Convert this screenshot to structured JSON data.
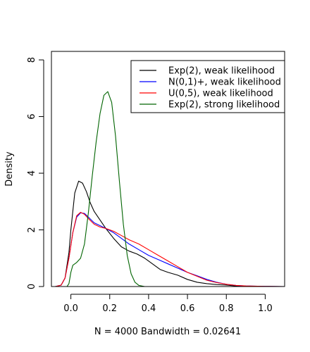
{
  "chart_data": {
    "type": "line",
    "title": "",
    "xlabel": "N = 4000   Bandwidth = 0.02641",
    "ylabel": "Density",
    "xlim": [
      -0.1,
      1.1
    ],
    "ylim": [
      0,
      8.3
    ],
    "xticks": [
      0.0,
      0.2,
      0.4,
      0.6,
      0.8,
      1.0
    ],
    "xtick_labels": [
      "0.0",
      "0.2",
      "0.4",
      "0.6",
      "0.8",
      "1.0"
    ],
    "yticks": [
      0,
      2,
      4,
      6,
      8
    ],
    "ytick_labels": [
      "0",
      "2",
      "4",
      "6",
      "8"
    ],
    "grid": false,
    "legend_position": "top-right",
    "series": [
      {
        "name": "Exp(2), weak likelihood",
        "color": "#000000",
        "points": [
          [
            -0.08,
            0
          ],
          [
            -0.05,
            0.05
          ],
          [
            -0.03,
            0.3
          ],
          [
            -0.01,
            1.2
          ],
          [
            0.0,
            2.0
          ],
          [
            0.02,
            3.3
          ],
          [
            0.04,
            3.72
          ],
          [
            0.06,
            3.65
          ],
          [
            0.08,
            3.35
          ],
          [
            0.1,
            2.95
          ],
          [
            0.12,
            2.65
          ],
          [
            0.15,
            2.35
          ],
          [
            0.18,
            2.05
          ],
          [
            0.22,
            1.7
          ],
          [
            0.26,
            1.4
          ],
          [
            0.3,
            1.25
          ],
          [
            0.34,
            1.15
          ],
          [
            0.38,
            1.0
          ],
          [
            0.42,
            0.8
          ],
          [
            0.46,
            0.6
          ],
          [
            0.5,
            0.5
          ],
          [
            0.55,
            0.4
          ],
          [
            0.6,
            0.25
          ],
          [
            0.65,
            0.15
          ],
          [
            0.7,
            0.1
          ],
          [
            0.75,
            0.07
          ],
          [
            0.8,
            0.05
          ],
          [
            0.85,
            0.02
          ],
          [
            0.9,
            0.01
          ],
          [
            1.0,
            0.005
          ],
          [
            1.1,
            0
          ]
        ]
      },
      {
        "name": "N(0,1)+, weak likelihood",
        "color": "#0000ff",
        "points": [
          [
            -0.08,
            0
          ],
          [
            -0.05,
            0.05
          ],
          [
            -0.03,
            0.3
          ],
          [
            -0.01,
            1.0
          ],
          [
            0.01,
            1.9
          ],
          [
            0.03,
            2.45
          ],
          [
            0.05,
            2.6
          ],
          [
            0.07,
            2.58
          ],
          [
            0.09,
            2.45
          ],
          [
            0.12,
            2.25
          ],
          [
            0.15,
            2.15
          ],
          [
            0.18,
            2.05
          ],
          [
            0.22,
            1.9
          ],
          [
            0.26,
            1.7
          ],
          [
            0.3,
            1.5
          ],
          [
            0.35,
            1.3
          ],
          [
            0.4,
            1.1
          ],
          [
            0.45,
            0.95
          ],
          [
            0.5,
            0.8
          ],
          [
            0.55,
            0.65
          ],
          [
            0.6,
            0.5
          ],
          [
            0.65,
            0.38
          ],
          [
            0.7,
            0.25
          ],
          [
            0.75,
            0.15
          ],
          [
            0.8,
            0.08
          ],
          [
            0.85,
            0.04
          ],
          [
            0.9,
            0.02
          ],
          [
            1.0,
            0.005
          ],
          [
            1.1,
            0
          ]
        ]
      },
      {
        "name": "U(0,5), weak likelihood",
        "color": "#ff0000",
        "points": [
          [
            -0.08,
            0
          ],
          [
            -0.05,
            0.05
          ],
          [
            -0.03,
            0.3
          ],
          [
            -0.01,
            1.0
          ],
          [
            0.01,
            1.9
          ],
          [
            0.03,
            2.5
          ],
          [
            0.05,
            2.62
          ],
          [
            0.07,
            2.55
          ],
          [
            0.09,
            2.4
          ],
          [
            0.12,
            2.2
          ],
          [
            0.15,
            2.1
          ],
          [
            0.18,
            2.05
          ],
          [
            0.22,
            1.95
          ],
          [
            0.26,
            1.8
          ],
          [
            0.3,
            1.65
          ],
          [
            0.35,
            1.5
          ],
          [
            0.4,
            1.3
          ],
          [
            0.45,
            1.1
          ],
          [
            0.5,
            0.9
          ],
          [
            0.55,
            0.7
          ],
          [
            0.6,
            0.5
          ],
          [
            0.65,
            0.36
          ],
          [
            0.7,
            0.22
          ],
          [
            0.75,
            0.14
          ],
          [
            0.8,
            0.08
          ],
          [
            0.85,
            0.04
          ],
          [
            0.9,
            0.02
          ],
          [
            1.0,
            0.005
          ],
          [
            1.1,
            0
          ]
        ]
      },
      {
        "name": "Exp(2), strong likelihood",
        "color": "#006400",
        "points": [
          [
            -0.02,
            0
          ],
          [
            -0.01,
            0.1
          ],
          [
            0.0,
            0.5
          ],
          [
            0.01,
            0.75
          ],
          [
            0.03,
            0.85
          ],
          [
            0.05,
            1.0
          ],
          [
            0.07,
            1.5
          ],
          [
            0.09,
            2.6
          ],
          [
            0.11,
            3.9
          ],
          [
            0.13,
            5.1
          ],
          [
            0.15,
            6.1
          ],
          [
            0.17,
            6.75
          ],
          [
            0.19,
            6.88
          ],
          [
            0.21,
            6.5
          ],
          [
            0.23,
            5.3
          ],
          [
            0.25,
            3.7
          ],
          [
            0.27,
            2.2
          ],
          [
            0.29,
            1.1
          ],
          [
            0.31,
            0.45
          ],
          [
            0.33,
            0.15
          ],
          [
            0.35,
            0.04
          ],
          [
            0.38,
            0
          ]
        ]
      }
    ]
  }
}
